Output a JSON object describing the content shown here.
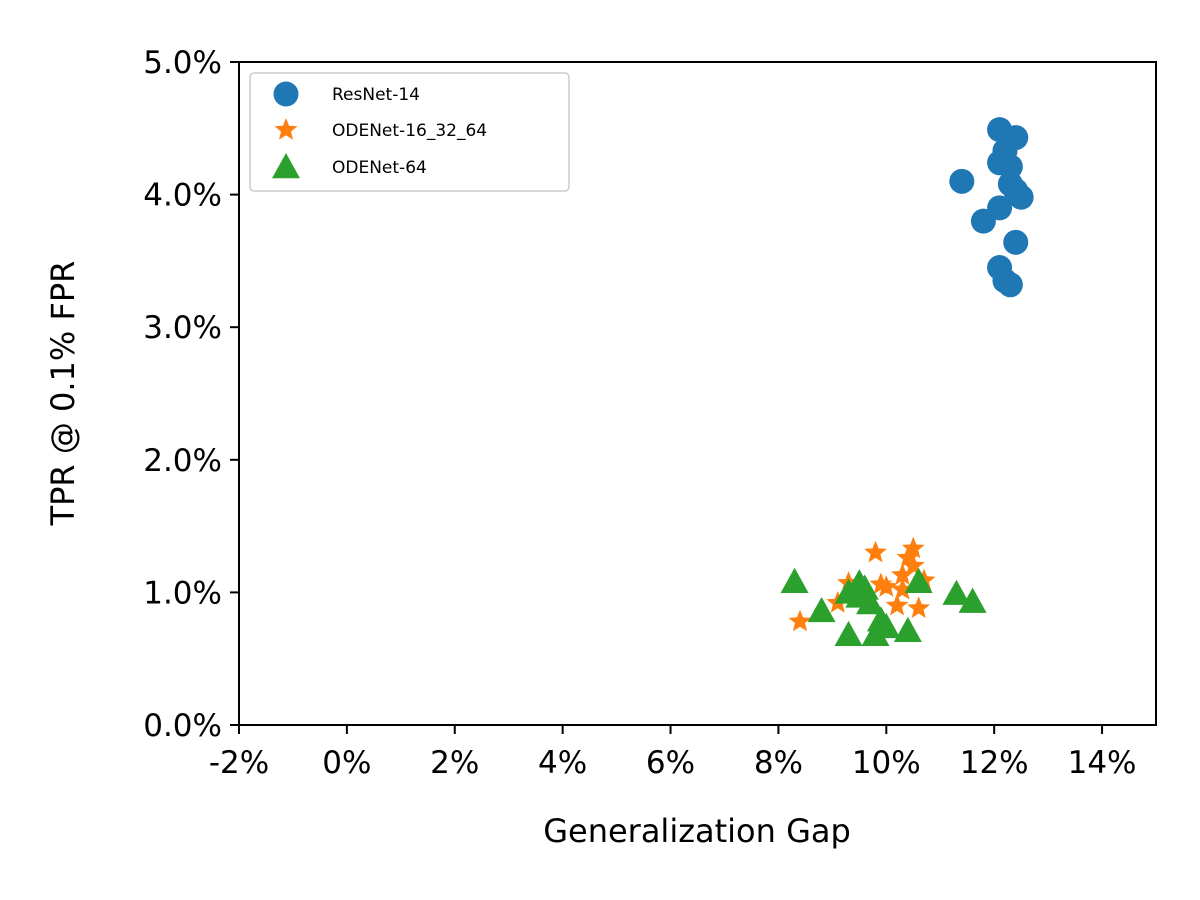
{
  "chart_data": {
    "type": "scatter",
    "title": "",
    "xlabel": "Generalization Gap",
    "ylabel": "TPR @ 0.1% FPR",
    "xlim": [
      -2,
      15
    ],
    "ylim": [
      0,
      5
    ],
    "x_ticks": [
      -2,
      0,
      2,
      4,
      6,
      8,
      10,
      12,
      14
    ],
    "x_tick_labels": [
      "-2%",
      "0%",
      "2%",
      "4%",
      "6%",
      "8%",
      "10%",
      "12%",
      "14%"
    ],
    "y_ticks": [
      0,
      1,
      2,
      3,
      4,
      5
    ],
    "y_tick_labels": [
      "0.0%",
      "1.0%",
      "2.0%",
      "3.0%",
      "4.0%",
      "5.0%"
    ],
    "grid": false,
    "legend_position": "top-left",
    "series": [
      {
        "name": "ResNet-14",
        "marker": "circle",
        "color": "#1f77b4",
        "points": [
          [
            12.1,
            4.49
          ],
          [
            12.4,
            4.43
          ],
          [
            12.2,
            4.33
          ],
          [
            12.1,
            4.24
          ],
          [
            12.3,
            4.21
          ],
          [
            11.4,
            4.1
          ],
          [
            12.3,
            4.08
          ],
          [
            12.4,
            4.03
          ],
          [
            12.5,
            3.98
          ],
          [
            12.1,
            3.9
          ],
          [
            11.8,
            3.8
          ],
          [
            12.4,
            3.64
          ],
          [
            12.1,
            3.45
          ],
          [
            12.2,
            3.35
          ],
          [
            12.3,
            3.32
          ]
        ]
      },
      {
        "name": "ODENet-16_32_64",
        "marker": "star",
        "color": "#ff7f0e",
        "points": [
          [
            10.5,
            1.33
          ],
          [
            9.8,
            1.3
          ],
          [
            10.4,
            1.26
          ],
          [
            10.5,
            1.2
          ],
          [
            10.3,
            1.13
          ],
          [
            10.7,
            1.09
          ],
          [
            9.3,
            1.07
          ],
          [
            9.9,
            1.06
          ],
          [
            10.0,
            1.04
          ],
          [
            10.3,
            1.02
          ],
          [
            9.5,
            1.0
          ],
          [
            9.1,
            0.92
          ],
          [
            10.2,
            0.9
          ],
          [
            10.6,
            0.88
          ],
          [
            8.4,
            0.78
          ]
        ]
      },
      {
        "name": "ODENet-64",
        "marker": "triangle",
        "color": "#2ca02c",
        "points": [
          [
            8.3,
            1.08
          ],
          [
            10.6,
            1.08
          ],
          [
            9.5,
            1.07
          ],
          [
            9.6,
            1.03
          ],
          [
            9.3,
            1.0
          ],
          [
            11.3,
            0.99
          ],
          [
            9.5,
            0.97
          ],
          [
            11.6,
            0.93
          ],
          [
            9.7,
            0.92
          ],
          [
            8.8,
            0.86
          ],
          [
            9.9,
            0.79
          ],
          [
            10.0,
            0.74
          ],
          [
            10.4,
            0.71
          ],
          [
            9.3,
            0.68
          ],
          [
            9.8,
            0.68
          ]
        ]
      }
    ]
  }
}
